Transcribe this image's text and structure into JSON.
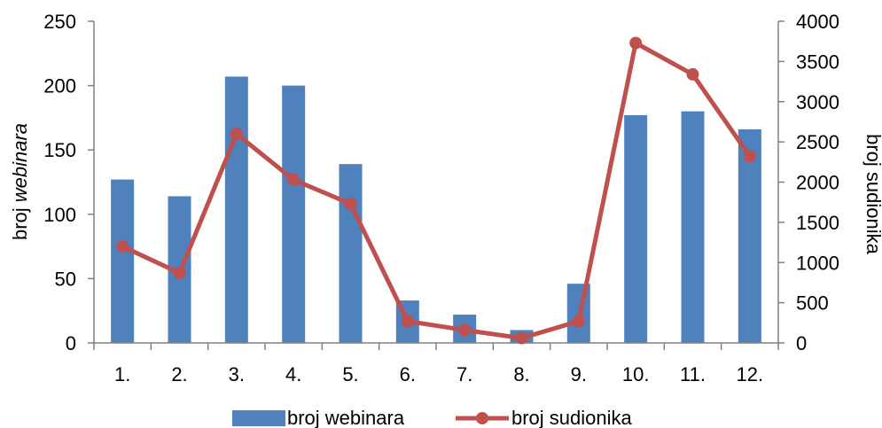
{
  "chart_data": {
    "type": "bar",
    "categories": [
      "1.",
      "2.",
      "3.",
      "4.",
      "5.",
      "6.",
      "7.",
      "8.",
      "9.",
      "10.",
      "11.",
      "12."
    ],
    "series": [
      {
        "name": "broj webinara",
        "type": "bar",
        "axis": "left",
        "color": "#4f81bd",
        "values": [
          127,
          114,
          207,
          200,
          139,
          33,
          22,
          10,
          46,
          177,
          180,
          166
        ]
      },
      {
        "name": "broj sudionika",
        "type": "line",
        "axis": "right",
        "color": "#c0504d",
        "values": [
          1200,
          870,
          2600,
          2030,
          1730,
          270,
          160,
          60,
          270,
          3730,
          3340,
          2320
        ]
      }
    ],
    "ylabel_prefix": "broj",
    "ylabel_italic": "webinara",
    "y2label": "broj sudionika",
    "ylim": [
      0,
      250
    ],
    "yticks": [
      0,
      50,
      100,
      150,
      200,
      250
    ],
    "y2lim": [
      0,
      4000
    ],
    "y2ticks": [
      0,
      500,
      1000,
      1500,
      2000,
      2500,
      3000,
      3500,
      4000
    ],
    "grid": false,
    "legend": "bottom-center"
  }
}
